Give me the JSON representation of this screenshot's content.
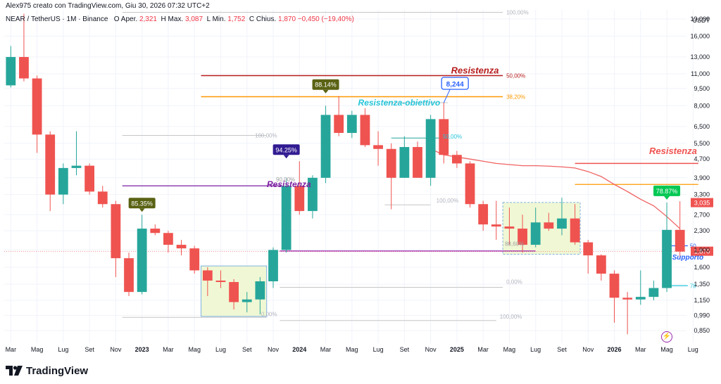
{
  "header": {
    "credit": "Alex975 creato con TradingView.com, Giu 30, 2026 07:32 UTC+2",
    "symbol": "NEAR / TetherUS · 1M · Binance",
    "o_label": "O",
    "o_text": "Aper.",
    "o_value": "2,321",
    "h_label": "H",
    "h_text": "Max.",
    "h_value": "3,087",
    "l_label": "L",
    "l_text": "Min.",
    "l_value": "1,752",
    "c_label": "C",
    "c_text": "Chius.",
    "c_value": "1,870",
    "change": "−0,450 (−19,40%)"
  },
  "footer": {
    "brand": "TradingView"
  },
  "colors": {
    "up": "#26a69a",
    "down": "#ef5350",
    "resist": "#b71c1c",
    "fib382": "#ff9800",
    "cyan": "#26c6da",
    "purple": "#7b1fa2",
    "magenta": "#9c27b0",
    "box": "#f0f7d4"
  },
  "chart_data": {
    "type": "candlestick",
    "unit": "USDT",
    "scale": "log",
    "ylim": [
      0.75,
      20.8
    ],
    "y_ticks": [
      "19,000",
      "16,000",
      "13,000",
      "11,000",
      "9,500",
      "8,000",
      "6,500",
      "5,500",
      "4,700",
      "3,900",
      "3,300",
      "2,700",
      "2,300",
      "1,900",
      "1,600",
      "1,350",
      "1,150",
      "0,990",
      "0,850"
    ],
    "x_ticks": [
      "Mar",
      "Mag",
      "Lug",
      "Set",
      "Nov",
      "2023",
      "Mar",
      "Mag",
      "Lug",
      "Set",
      "Nov",
      "2024",
      "Mar",
      "Mag",
      "Lug",
      "Set",
      "Nov",
      "2025",
      "Mar",
      "Mag",
      "Lug",
      "Set",
      "Nov",
      "2026",
      "Mar",
      "Mag",
      "Lug"
    ],
    "x_tick_month_index": [
      0,
      2,
      4,
      6,
      8,
      10,
      12,
      14,
      16,
      18,
      20,
      22,
      24,
      26,
      28,
      30,
      32,
      34,
      36,
      38,
      40,
      42,
      44,
      46,
      48,
      50,
      52
    ],
    "candles": [
      {
        "o": 9.8,
        "h": 14.5,
        "l": 9.6,
        "c": 13.0
      },
      {
        "o": 13.0,
        "h": 20.0,
        "l": 10.2,
        "c": 10.5
      },
      {
        "o": 10.5,
        "h": 10.8,
        "l": 5.0,
        "c": 6.0
      },
      {
        "o": 6.0,
        "h": 6.2,
        "l": 2.8,
        "c": 3.3
      },
      {
        "o": 3.3,
        "h": 4.5,
        "l": 3.0,
        "c": 4.3
      },
      {
        "o": 4.3,
        "h": 6.2,
        "l": 4.0,
        "c": 4.4
      },
      {
        "o": 4.4,
        "h": 4.5,
        "l": 3.3,
        "c": 3.4
      },
      {
        "o": 3.4,
        "h": 3.6,
        "l": 2.9,
        "c": 3.0
      },
      {
        "o": 3.0,
        "h": 3.1,
        "l": 1.45,
        "c": 1.75
      },
      {
        "o": 1.75,
        "h": 1.85,
        "l": 1.2,
        "c": 1.25
      },
      {
        "o": 1.25,
        "h": 2.7,
        "l": 1.22,
        "c": 2.35
      },
      {
        "o": 2.35,
        "h": 2.45,
        "l": 2.2,
        "c": 2.25
      },
      {
        "o": 2.25,
        "h": 2.3,
        "l": 1.85,
        "c": 2.0
      },
      {
        "o": 2.0,
        "h": 2.1,
        "l": 1.8,
        "c": 1.93
      },
      {
        "o": 1.93,
        "h": 1.98,
        "l": 1.5,
        "c": 1.55
      },
      {
        "o": 1.55,
        "h": 1.6,
        "l": 1.2,
        "c": 1.4
      },
      {
        "o": 1.4,
        "h": 1.55,
        "l": 1.3,
        "c": 1.38
      },
      {
        "o": 1.38,
        "h": 1.42,
        "l": 1.05,
        "c": 1.13
      },
      {
        "o": 1.13,
        "h": 1.25,
        "l": 1.02,
        "c": 1.16
      },
      {
        "o": 1.16,
        "h": 1.45,
        "l": 1.0,
        "c": 1.39
      },
      {
        "o": 1.39,
        "h": 1.95,
        "l": 1.3,
        "c": 1.9
      },
      {
        "o": 1.9,
        "h": 3.9,
        "l": 1.85,
        "c": 3.6
      },
      {
        "o": 3.6,
        "h": 4.6,
        "l": 2.7,
        "c": 2.8
      },
      {
        "o": 2.8,
        "h": 4.0,
        "l": 2.6,
        "c": 3.9
      },
      {
        "o": 3.9,
        "h": 8.0,
        "l": 3.7,
        "c": 7.3
      },
      {
        "o": 7.3,
        "h": 8.8,
        "l": 5.9,
        "c": 6.1
      },
      {
        "o": 6.1,
        "h": 7.6,
        "l": 5.8,
        "c": 7.3
      },
      {
        "o": 7.3,
        "h": 7.8,
        "l": 5.3,
        "c": 5.4
      },
      {
        "o": 5.4,
        "h": 6.2,
        "l": 4.4,
        "c": 5.2
      },
      {
        "o": 5.2,
        "h": 5.5,
        "l": 2.85,
        "c": 3.9
      },
      {
        "o": 3.9,
        "h": 5.9,
        "l": 3.9,
        "c": 5.3
      },
      {
        "o": 5.3,
        "h": 5.6,
        "l": 3.9,
        "c": 3.9
      },
      {
        "o": 3.9,
        "h": 7.3,
        "l": 3.6,
        "c": 7.0
      },
      {
        "o": 7.0,
        "h": 8.244,
        "l": 4.5,
        "c": 4.9
      },
      {
        "o": 4.9,
        "h": 5.1,
        "l": 4.3,
        "c": 4.5
      },
      {
        "o": 4.5,
        "h": 4.6,
        "l": 2.9,
        "c": 3.0
      },
      {
        "o": 3.0,
        "h": 3.1,
        "l": 2.3,
        "c": 2.45
      },
      {
        "o": 2.45,
        "h": 3.1,
        "l": 2.1,
        "c": 2.4
      },
      {
        "o": 2.4,
        "h": 2.9,
        "l": 2.0,
        "c": 2.35
      },
      {
        "o": 2.35,
        "h": 2.7,
        "l": 1.85,
        "c": 2.0
      },
      {
        "o": 2.0,
        "h": 2.9,
        "l": 1.95,
        "c": 2.5
      },
      {
        "o": 2.5,
        "h": 2.75,
        "l": 2.3,
        "c": 2.35
      },
      {
        "o": 2.35,
        "h": 3.2,
        "l": 2.2,
        "c": 2.6
      },
      {
        "o": 2.6,
        "h": 3.0,
        "l": 2.0,
        "c": 2.05
      },
      {
        "o": 2.05,
        "h": 2.1,
        "l": 1.5,
        "c": 1.8
      },
      {
        "o": 1.8,
        "h": 1.82,
        "l": 1.4,
        "c": 1.5
      },
      {
        "o": 1.5,
        "h": 1.55,
        "l": 0.92,
        "c": 1.18
      },
      {
        "o": 1.18,
        "h": 1.25,
        "l": 0.82,
        "c": 1.16
      },
      {
        "o": 1.16,
        "h": 1.55,
        "l": 1.1,
        "c": 1.19
      },
      {
        "o": 1.19,
        "h": 1.4,
        "l": 1.15,
        "c": 1.3
      },
      {
        "o": 1.3,
        "h": 3.05,
        "l": 1.25,
        "c": 2.321
      },
      {
        "o": 2.321,
        "h": 3.087,
        "l": 1.752,
        "c": 1.87
      }
    ],
    "current_price_label": "1,870",
    "high_price_label": "3,035",
    "moving_average": [
      {
        "m": 32,
        "v": 5.2
      },
      {
        "m": 33,
        "v": 4.9
      },
      {
        "m": 34,
        "v": 4.8
      },
      {
        "m": 35,
        "v": 4.7
      },
      {
        "m": 36,
        "v": 4.6
      },
      {
        "m": 37,
        "v": 4.5
      },
      {
        "m": 38,
        "v": 4.45
      },
      {
        "m": 39,
        "v": 4.4
      },
      {
        "m": 40,
        "v": 4.4
      },
      {
        "m": 41,
        "v": 4.38
      },
      {
        "m": 42,
        "v": 4.35
      },
      {
        "m": 43,
        "v": 4.3
      },
      {
        "m": 44,
        "v": 4.15
      },
      {
        "m": 45,
        "v": 3.95
      },
      {
        "m": 46,
        "v": 3.65
      },
      {
        "m": 47,
        "v": 3.4
      },
      {
        "m": 48,
        "v": 3.15
      },
      {
        "m": 49,
        "v": 2.95
      },
      {
        "m": 50,
        "v": 2.65
      },
      {
        "m": 51,
        "v": 2.35
      }
    ],
    "annotations": {
      "resistenza_top": "Resistenza",
      "resistenza_right": "Resistenza",
      "resistenza_obiettivo": "Resistenza-obiettivo",
      "resistenza_mid": "Resistenza",
      "supporto": "Supporto",
      "fib_50": "50,00%",
      "fib_382": "38,20%",
      "fib_100_top": "100,00%",
      "fib_100_left": "100,00%",
      "fib_0_left": "0,00%",
      "fib_100_bottom": "100,00%",
      "fib_0_mid": "0,00%",
      "fib_100_mid": "100,00%",
      "fib_50_mid": "50,00%",
      "fib_886_mid": "88,60%",
      "fib_906_mid": "90,00%",
      "right_50": "50",
      "right_78": "78",
      "callout_8244": "8,244",
      "pct_8535": "85.35%",
      "pct_9425": "94.25%",
      "pct_8814": "88.14%",
      "pct_7887": "78.87%"
    }
  }
}
